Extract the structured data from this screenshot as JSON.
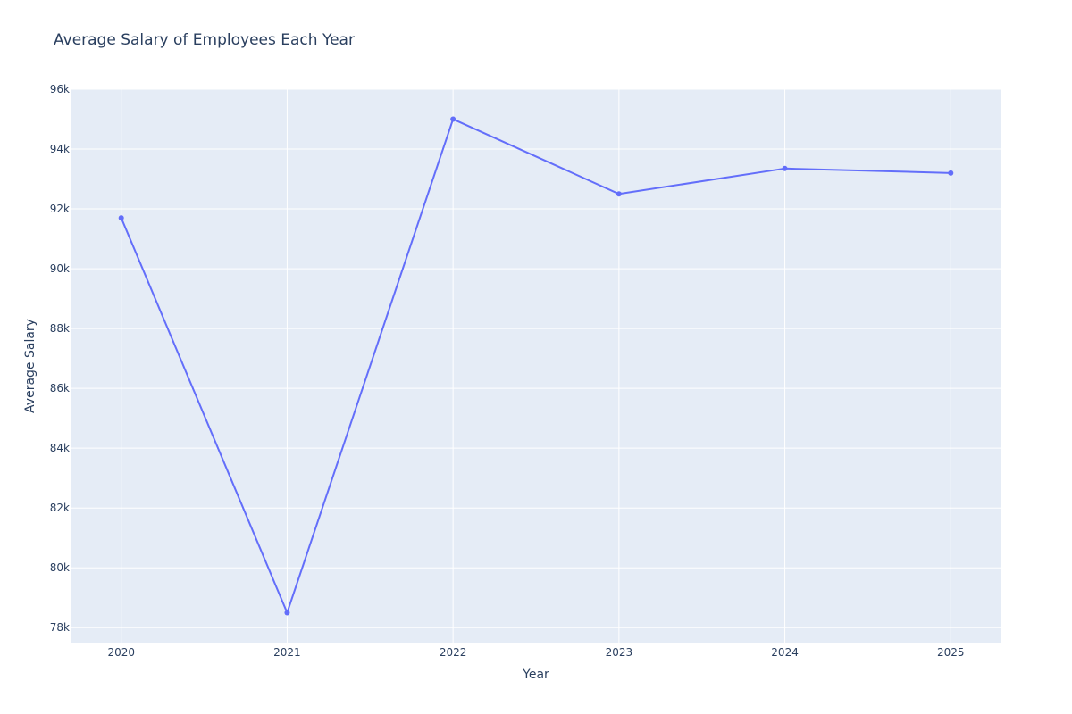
{
  "chart_data": {
    "type": "line",
    "title": "Average Salary of Employees Each Year",
    "xlabel": "Year",
    "ylabel": "Average Salary",
    "x": [
      2020,
      2021,
      2022,
      2023,
      2024,
      2025
    ],
    "x_tick_labels": [
      "2020",
      "2021",
      "2022",
      "2023",
      "2024",
      "2025"
    ],
    "xlim": [
      2019.7,
      2025.3
    ],
    "ylim": [
      77500,
      96000
    ],
    "y_ticks": [
      78000,
      80000,
      82000,
      84000,
      86000,
      88000,
      90000,
      92000,
      94000,
      96000
    ],
    "y_tick_labels": [
      "78k",
      "80k",
      "82k",
      "84k",
      "86k",
      "88k",
      "90k",
      "92k",
      "94k",
      "96k"
    ],
    "series": [
      {
        "values": [
          91700,
          78500,
          95000,
          92500,
          93350,
          93200
        ],
        "color": "#636efa",
        "mode": "lines+markers"
      }
    ],
    "grid": true,
    "legend": "none",
    "colors": {
      "plot_background": "#e5ecf6",
      "grid": "#ffffff",
      "text": "#2a3f5f"
    }
  }
}
